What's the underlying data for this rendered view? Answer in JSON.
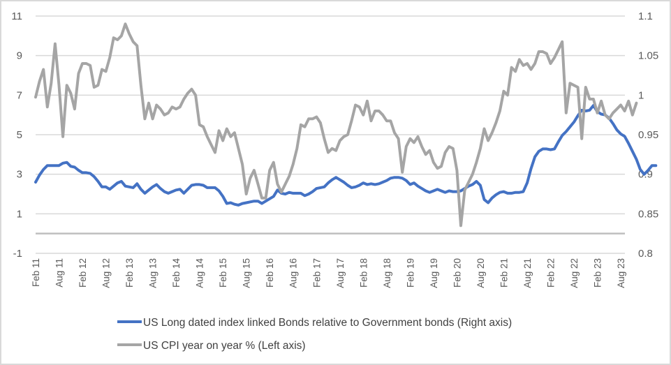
{
  "chart_data": {
    "type": "line",
    "title": "",
    "xlabel": "",
    "ylabel_left": "",
    "ylabel_right": "",
    "grid": true,
    "legend_position": "bottom",
    "left_axis": {
      "ylim": [
        -1,
        11
      ],
      "ticks": [
        -1,
        1,
        3,
        5,
        7,
        9,
        11
      ],
      "tick_labels": [
        "-1",
        "1",
        "3",
        "5",
        "7",
        "9",
        "11"
      ]
    },
    "right_axis": {
      "ylim": [
        0.8,
        1.1
      ],
      "ticks": [
        0.8,
        0.85,
        0.9,
        0.95,
        1.0,
        1.05,
        1.1
      ],
      "tick_labels": [
        "0.8",
        "0.85",
        "0.9",
        "0.95",
        "1",
        "1.05",
        "1.1"
      ]
    },
    "x_start": "2011-02",
    "x_frequency": "monthly",
    "x_tick_labels": [
      "Feb 11",
      "Aug 11",
      "Feb 12",
      "Aug 12",
      "Feb 13",
      "Aug 13",
      "Feb 14",
      "Aug 14",
      "Feb 15",
      "Aug 15",
      "Feb 16",
      "Aug 16",
      "Feb 17",
      "Aug 17",
      "Feb 18",
      "Aug 18",
      "Feb 19",
      "Aug 19",
      "Feb 20",
      "Aug 20",
      "Feb 21",
      "Aug 21",
      "Feb 22",
      "Aug 22",
      "Feb 23",
      "Aug 23"
    ],
    "series": [
      {
        "name": "US Long dated index linked Bonds relative to Government bonds (Right axis)",
        "axis": "right",
        "color": "#4472c4",
        "values": [
          0.89,
          0.899,
          0.906,
          0.911,
          0.911,
          0.911,
          0.911,
          0.914,
          0.915,
          0.91,
          0.909,
          0.905,
          0.902,
          0.902,
          0.901,
          0.897,
          0.891,
          0.884,
          0.884,
          0.881,
          0.885,
          0.889,
          0.891,
          0.885,
          0.884,
          0.883,
          0.888,
          0.881,
          0.876,
          0.88,
          0.884,
          0.887,
          0.882,
          0.878,
          0.876,
          0.878,
          0.88,
          0.881,
          0.876,
          0.881,
          0.886,
          0.887,
          0.887,
          0.886,
          0.883,
          0.883,
          0.883,
          0.879,
          0.872,
          0.863,
          0.864,
          0.862,
          0.861,
          0.863,
          0.864,
          0.865,
          0.866,
          0.866,
          0.863,
          0.866,
          0.869,
          0.872,
          0.88,
          0.876,
          0.875,
          0.877,
          0.876,
          0.876,
          0.876,
          0.873,
          0.875,
          0.878,
          0.882,
          0.883,
          0.884,
          0.889,
          0.893,
          0.896,
          0.893,
          0.89,
          0.886,
          0.883,
          0.884,
          0.886,
          0.889,
          0.887,
          0.888,
          0.887,
          0.888,
          0.89,
          0.892,
          0.895,
          0.896,
          0.896,
          0.895,
          0.892,
          0.887,
          0.889,
          0.885,
          0.882,
          0.879,
          0.877,
          0.879,
          0.881,
          0.879,
          0.877,
          0.879,
          0.878,
          0.878,
          0.879,
          0.882,
          0.885,
          0.887,
          0.891,
          0.886,
          0.868,
          0.864,
          0.87,
          0.874,
          0.877,
          0.878,
          0.876,
          0.876,
          0.877,
          0.877,
          0.878,
          0.889,
          0.907,
          0.922,
          0.929,
          0.932,
          0.932,
          0.931,
          0.932,
          0.941,
          0.949,
          0.954,
          0.96,
          0.966,
          0.974,
          0.981,
          0.98,
          0.981,
          0.987,
          0.979,
          0.976,
          0.975,
          0.971,
          0.964,
          0.956,
          0.951,
          0.948,
          0.939,
          0.929,
          0.919,
          0.906,
          0.9,
          0.905,
          0.911,
          0.911
        ]
      },
      {
        "name": "US CPI year on year % (Left axis)",
        "axis": "left",
        "color": "#a5a5a5",
        "values": [
          6.9,
          7.7,
          8.3,
          6.4,
          7.6,
          9.6,
          7.5,
          4.9,
          7.5,
          7.1,
          6.3,
          8.1,
          8.6,
          8.6,
          8.5,
          7.4,
          7.5,
          8.3,
          8.2,
          8.9,
          9.9,
          9.8,
          10.0,
          10.6,
          10.1,
          9.7,
          9.5,
          7.5,
          5.8,
          6.6,
          5.8,
          6.5,
          6.3,
          6.0,
          6.1,
          6.4,
          6.3,
          6.4,
          6.8,
          7.1,
          7.3,
          7.0,
          5.5,
          5.4,
          4.9,
          4.5,
          4.1,
          5.2,
          4.7,
          5.3,
          4.9,
          5.1,
          4.3,
          3.5,
          2.0,
          2.8,
          3.2,
          2.5,
          1.8,
          1.8,
          3.2,
          3.6,
          2.5,
          2.1,
          2.5,
          2.9,
          3.5,
          4.3,
          5.5,
          5.4,
          5.8,
          5.8,
          5.9,
          5.6,
          4.8,
          4.1,
          4.3,
          4.2,
          4.7,
          4.9,
          5.0,
          5.7,
          6.5,
          6.4,
          6.0,
          6.7,
          5.7,
          6.2,
          6.2,
          6.0,
          5.7,
          5.7,
          5.1,
          4.8,
          3.1,
          4.4,
          4.8,
          4.6,
          4.9,
          4.4,
          4.0,
          4.2,
          3.6,
          3.3,
          3.4,
          4.1,
          4.4,
          4.3,
          3.2,
          0.4,
          2.2,
          2.6,
          3.0,
          3.6,
          4.3,
          5.3,
          4.7,
          5.1,
          5.6,
          6.2,
          7.2,
          7.0,
          8.4,
          8.2,
          8.8,
          8.5,
          8.6,
          8.3,
          8.6,
          9.2,
          9.2,
          9.1,
          8.6,
          8.9,
          9.3,
          9.7,
          6.1,
          7.6,
          7.5,
          7.4,
          4.8,
          7.4,
          6.8,
          6.8,
          6.1,
          6.7,
          6.0,
          5.8,
          6.1,
          6.3,
          6.5,
          6.2,
          6.7,
          6.0,
          6.6
        ]
      }
    ]
  },
  "legend": {
    "items": [
      {
        "label": "US Long dated index linked Bonds relative to Government bonds (Right axis)",
        "color": "#4472c4"
      },
      {
        "label": "US CPI year on year % (Left axis)",
        "color": "#a5a5a5"
      }
    ]
  }
}
